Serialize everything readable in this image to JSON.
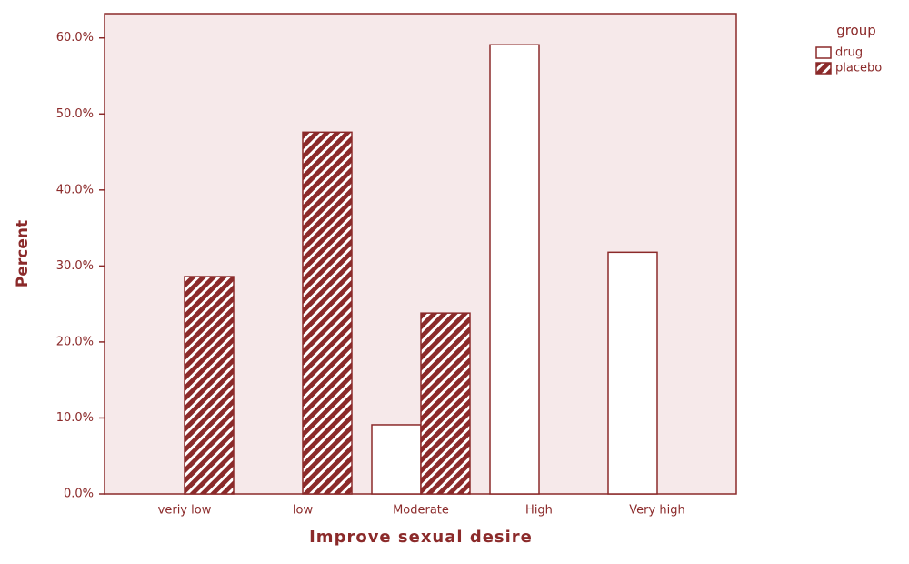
{
  "chart_data": {
    "type": "bar",
    "y_label": "Percent",
    "x_label": "Improve sexual desire",
    "legend_title": "group",
    "categories": [
      "veriy low",
      "low",
      "Moderate",
      "High",
      "Very high"
    ],
    "series": [
      {
        "name": "drug",
        "color": "#ffffff",
        "values": [
          0,
          0,
          9.1,
          59.1,
          31.8
        ]
      },
      {
        "name": "placebo",
        "color": "#8b2a2a",
        "pattern": "hatch",
        "values": [
          28.6,
          47.6,
          23.8,
          0,
          0
        ]
      }
    ],
    "ylim": [
      0,
      63.2
    ],
    "yticks": [
      {
        "value": 0,
        "label": "0.0%"
      },
      {
        "value": 10,
        "label": "10.0%"
      },
      {
        "value": 20,
        "label": "20.0%"
      },
      {
        "value": 30,
        "label": "30.0%"
      },
      {
        "value": 40,
        "label": "40.0%"
      },
      {
        "value": 50,
        "label": "50.0%"
      },
      {
        "value": 60,
        "label": "60.0%"
      }
    ],
    "legend": "right"
  }
}
